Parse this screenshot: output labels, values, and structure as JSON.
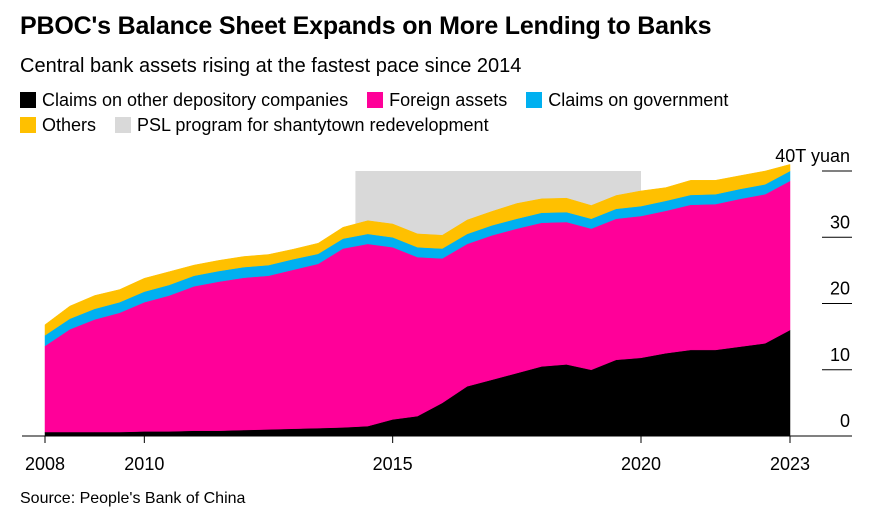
{
  "title": "PBOC's Balance Sheet Expands on More Lending to Banks",
  "subtitle": "Central bank assets rising at the fastest pace since 2014",
  "source": "Source: People's Bank of China",
  "legend": [
    {
      "label": "Claims on other depository companies",
      "color": "#000000"
    },
    {
      "label": "Foreign assets",
      "color": "#ff0099"
    },
    {
      "label": "Claims on government",
      "color": "#00b0f0"
    },
    {
      "label": "Others",
      "color": "#ffc000"
    },
    {
      "label": "PSL program for shantytown redevelopment",
      "color": "#d9d9d9"
    }
  ],
  "chart_data": {
    "type": "area",
    "stacked": true,
    "x_label_ticks": [
      "2008",
      "2010",
      "2015",
      "2020",
      "2023"
    ],
    "y_ticks": [
      {
        "value": 0,
        "label": "0"
      },
      {
        "value": 10,
        "label": "10"
      },
      {
        "value": 20,
        "label": "20"
      },
      {
        "value": 30,
        "label": "30"
      },
      {
        "value": 40,
        "label": "40T yuan"
      }
    ],
    "ylim": [
      0,
      40
    ],
    "shaded_region": {
      "label": "PSL program for shantytown redevelopment",
      "x_start": 2014.25,
      "x_end": 2020.0
    },
    "x": [
      2008.0,
      2008.5,
      2009.0,
      2009.5,
      2010.0,
      2010.5,
      2011.0,
      2011.5,
      2012.0,
      2012.5,
      2013.0,
      2013.5,
      2014.0,
      2014.5,
      2015.0,
      2015.5,
      2016.0,
      2016.5,
      2017.0,
      2017.5,
      2018.0,
      2018.5,
      2019.0,
      2019.5,
      2020.0,
      2020.5,
      2021.0,
      2021.5,
      2022.0,
      2022.5,
      2023.0
    ],
    "series": [
      {
        "name": "Claims on other depository companies",
        "color": "#000000",
        "values": [
          0.6,
          0.6,
          0.6,
          0.6,
          0.7,
          0.7,
          0.8,
          0.8,
          0.9,
          1.0,
          1.1,
          1.2,
          1.3,
          1.5,
          2.5,
          3.0,
          5.0,
          7.5,
          8.5,
          9.5,
          10.5,
          10.8,
          10.0,
          11.5,
          11.8,
          12.5,
          13.0,
          13.0,
          13.5,
          14.0,
          16.0
        ]
      },
      {
        "name": "Foreign assets",
        "color": "#ff0099",
        "values": [
          13.0,
          15.5,
          17.0,
          18.0,
          19.5,
          20.5,
          21.8,
          22.5,
          23.0,
          23.2,
          24.0,
          24.8,
          27.0,
          27.5,
          26.0,
          24.0,
          21.8,
          21.5,
          21.8,
          21.8,
          21.7,
          21.5,
          21.3,
          21.3,
          21.4,
          21.5,
          21.9,
          22.0,
          22.3,
          22.5,
          22.5
        ]
      },
      {
        "name": "Claims on government",
        "color": "#00b0f0",
        "values": [
          1.6,
          1.6,
          1.6,
          1.6,
          1.6,
          1.6,
          1.6,
          1.6,
          1.6,
          1.6,
          1.6,
          1.5,
          1.5,
          1.5,
          1.5,
          1.5,
          1.5,
          1.5,
          1.5,
          1.5,
          1.5,
          1.5,
          1.5,
          1.5,
          1.5,
          1.5,
          1.5,
          1.5,
          1.5,
          1.5,
          1.5
        ]
      },
      {
        "name": "Others",
        "color": "#ffc000",
        "values": [
          1.6,
          1.9,
          2.0,
          1.9,
          2.0,
          2.0,
          1.6,
          1.6,
          1.6,
          1.6,
          1.5,
          1.6,
          1.7,
          2.0,
          2.0,
          2.0,
          2.0,
          2.1,
          2.1,
          2.3,
          2.1,
          2.1,
          2.0,
          2.0,
          2.3,
          2.0,
          2.2,
          2.1,
          2.0,
          2.0,
          1.0
        ]
      }
    ]
  }
}
